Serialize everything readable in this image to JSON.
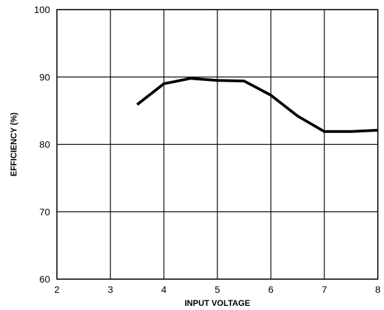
{
  "chart_data": {
    "type": "line",
    "title": "",
    "xlabel": "INPUT VOLTAGE",
    "ylabel": "EFFICIENCY (%)",
    "xlim": [
      2,
      8
    ],
    "ylim": [
      60,
      100
    ],
    "xticks": [
      "2",
      "3",
      "4",
      "5",
      "6",
      "7",
      "8"
    ],
    "yticks": [
      "60",
      "70",
      "80",
      "90",
      "100"
    ],
    "grid": true,
    "legend": "none",
    "series": [
      {
        "color": "#000000",
        "x": [
          3.5,
          4.0,
          4.5,
          5.0,
          5.5,
          6.0,
          6.5,
          7.0,
          7.5,
          8.0
        ],
        "y": [
          85.9,
          89.0,
          89.8,
          89.5,
          89.4,
          87.3,
          84.2,
          81.9,
          81.9,
          82.1
        ]
      }
    ]
  }
}
